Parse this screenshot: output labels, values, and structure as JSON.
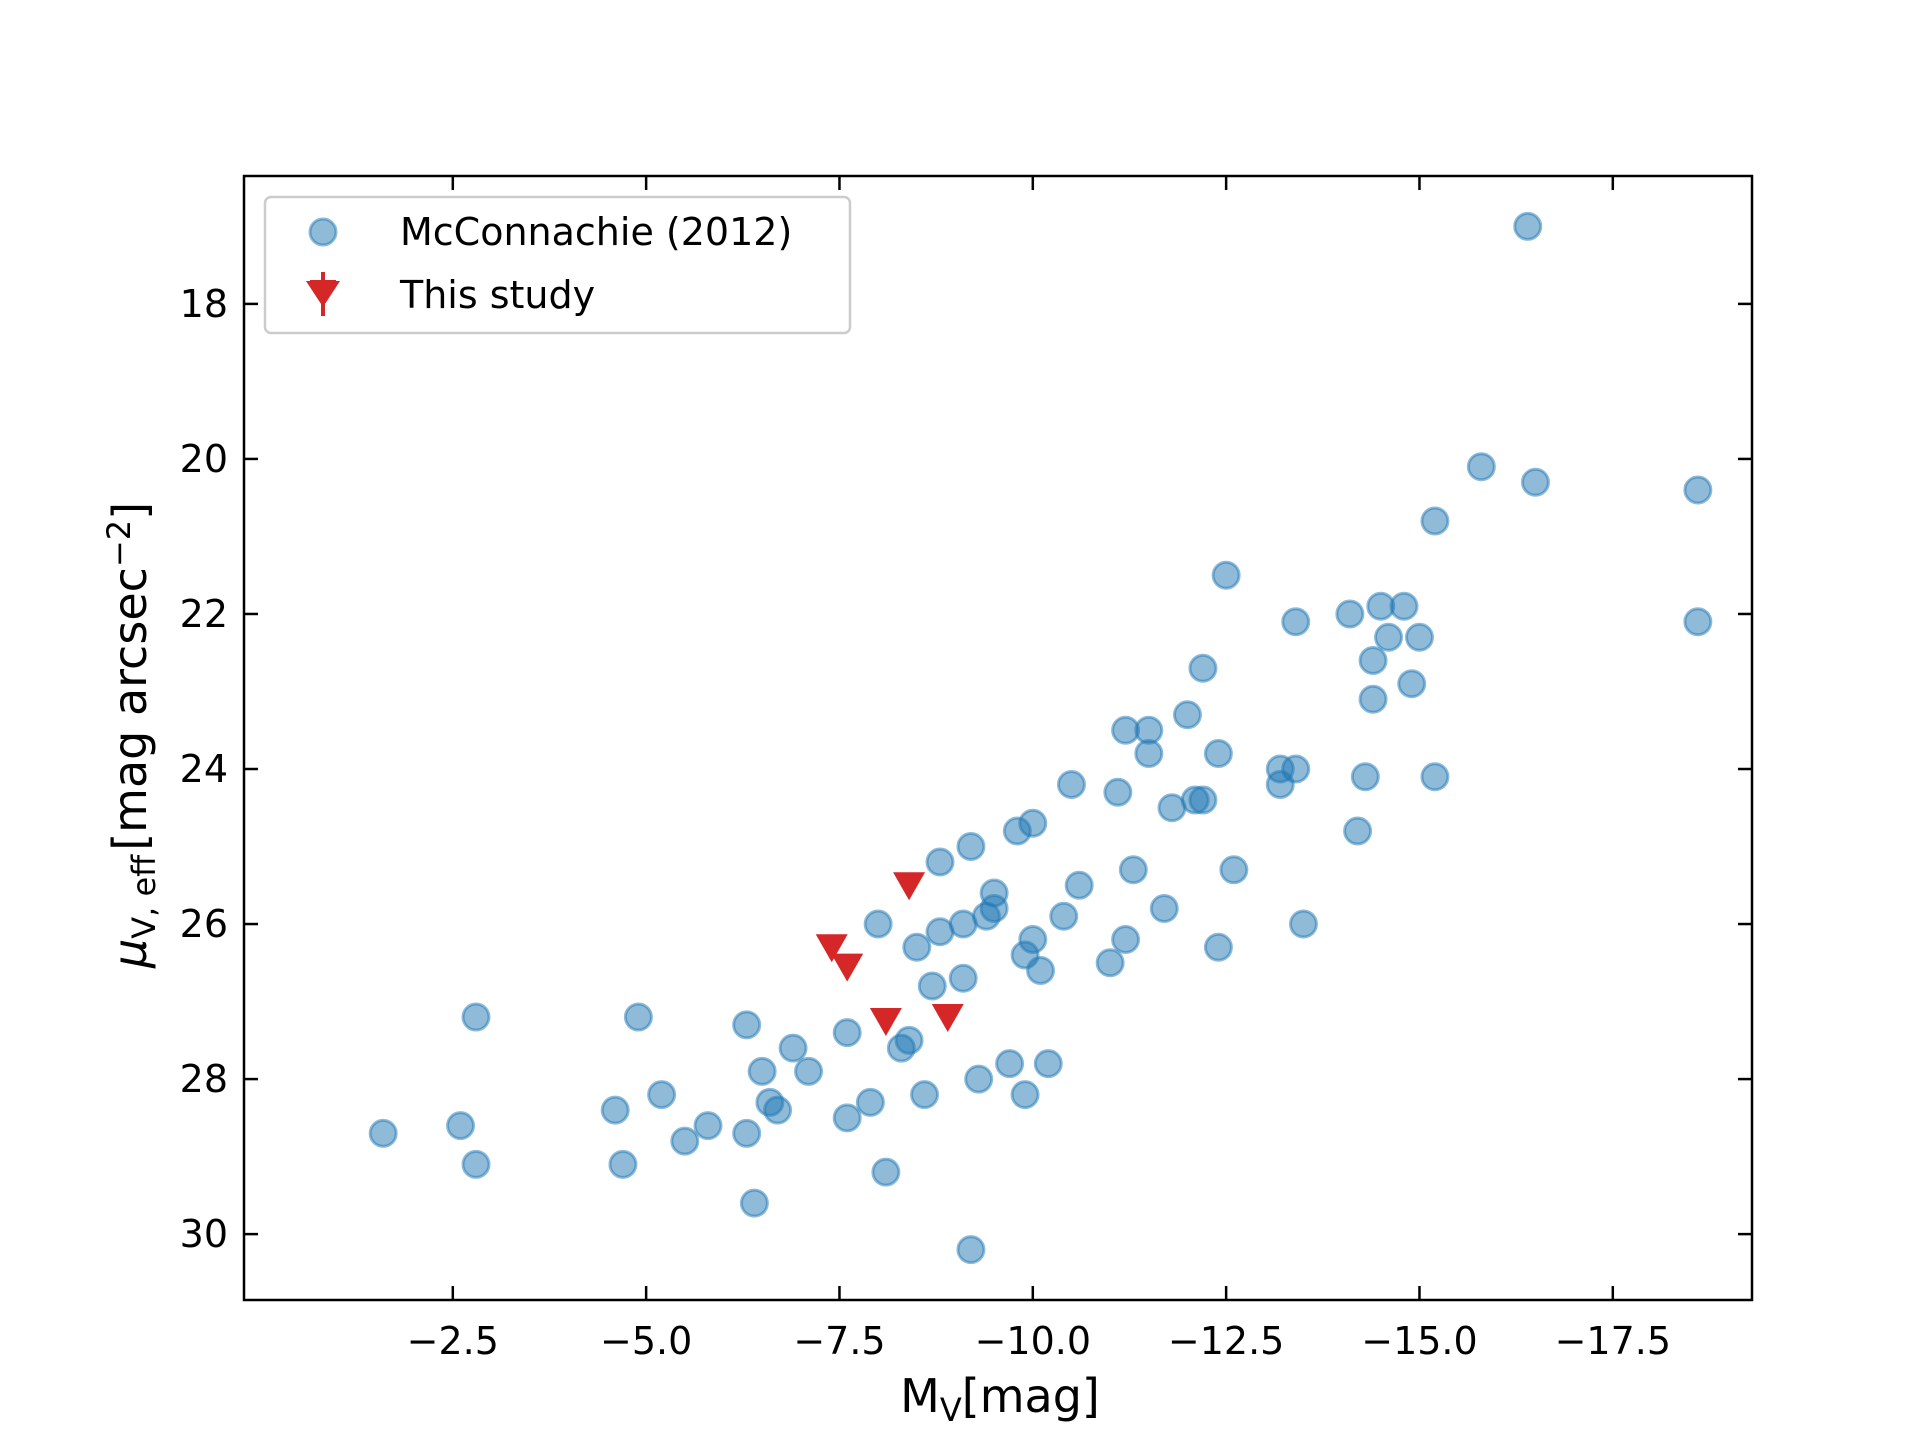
{
  "chart_data": {
    "type": "scatter",
    "title": "",
    "xlabel": {
      "main": "M",
      "sub": "V",
      "rest": "[mag]"
    },
    "ylabel": {
      "main": "μ",
      "sub": "V, eff",
      "rest": "[mag arcsec",
      "sup": "−2",
      "end": "]"
    },
    "xlim": [
      0.2,
      -19.3
    ],
    "ylim": [
      30.85,
      16.35
    ],
    "xticks": [
      {
        "value": -2.5,
        "label": "−2.5"
      },
      {
        "value": -5.0,
        "label": "−5.0"
      },
      {
        "value": -7.5,
        "label": "−7.5"
      },
      {
        "value": -10.0,
        "label": "−10.0"
      },
      {
        "value": -12.5,
        "label": "−12.5"
      },
      {
        "value": -15.0,
        "label": "−15.0"
      },
      {
        "value": -17.5,
        "label": "−17.5"
      }
    ],
    "yticks": [
      {
        "value": 18,
        "label": "18"
      },
      {
        "value": 20,
        "label": "20"
      },
      {
        "value": 22,
        "label": "22"
      },
      {
        "value": 24,
        "label": "24"
      },
      {
        "value": 26,
        "label": "26"
      },
      {
        "value": 28,
        "label": "28"
      },
      {
        "value": 30,
        "label": "30"
      }
    ],
    "legend_position": "top-left",
    "series": [
      {
        "name": "McConnachie (2012)",
        "marker": "circle",
        "color": "#1f77b4",
        "points": [
          [
            -16.4,
            17.0
          ],
          [
            -15.8,
            20.1
          ],
          [
            -16.5,
            20.3
          ],
          [
            -18.6,
            20.4
          ],
          [
            -15.2,
            20.8
          ],
          [
            -18.6,
            22.1
          ],
          [
            -12.5,
            21.5
          ],
          [
            -13.4,
            22.1
          ],
          [
            -14.1,
            22.0
          ],
          [
            -14.5,
            21.9
          ],
          [
            -14.8,
            21.9
          ],
          [
            -14.6,
            22.3
          ],
          [
            -15.0,
            22.3
          ],
          [
            -14.4,
            22.6
          ],
          [
            -14.9,
            22.9
          ],
          [
            -14.4,
            23.1
          ],
          [
            -12.2,
            22.7
          ],
          [
            -12.0,
            23.3
          ],
          [
            -11.2,
            23.5
          ],
          [
            -11.5,
            23.5
          ],
          [
            -11.5,
            23.8
          ],
          [
            -12.4,
            23.8
          ],
          [
            -13.2,
            24.0
          ],
          [
            -13.4,
            24.0
          ],
          [
            -13.2,
            24.2
          ],
          [
            -14.3,
            24.1
          ],
          [
            -15.2,
            24.1
          ],
          [
            -10.5,
            24.2
          ],
          [
            -11.1,
            24.3
          ],
          [
            -12.1,
            24.4
          ],
          [
            -12.2,
            24.4
          ],
          [
            -11.8,
            24.5
          ],
          [
            -10.0,
            24.7
          ],
          [
            -9.8,
            24.8
          ],
          [
            -14.2,
            24.8
          ],
          [
            -9.2,
            25.0
          ],
          [
            -8.8,
            25.2
          ],
          [
            -11.3,
            25.3
          ],
          [
            -12.6,
            25.3
          ],
          [
            -10.6,
            25.5
          ],
          [
            -9.5,
            25.6
          ],
          [
            -9.5,
            25.8
          ],
          [
            -11.7,
            25.8
          ],
          [
            -9.4,
            25.9
          ],
          [
            -10.4,
            25.9
          ],
          [
            -8.0,
            26.0
          ],
          [
            -9.1,
            26.0
          ],
          [
            -13.5,
            26.0
          ],
          [
            -8.8,
            26.1
          ],
          [
            -10.0,
            26.2
          ],
          [
            -11.2,
            26.2
          ],
          [
            -8.5,
            26.3
          ],
          [
            -12.4,
            26.3
          ],
          [
            -9.9,
            26.4
          ],
          [
            -11.0,
            26.5
          ],
          [
            -10.1,
            26.6
          ],
          [
            -9.1,
            26.7
          ],
          [
            -8.7,
            26.8
          ],
          [
            -1.6,
            28.7
          ],
          [
            -2.6,
            28.6
          ],
          [
            -2.8,
            27.2
          ],
          [
            -2.8,
            29.1
          ],
          [
            -4.6,
            28.4
          ],
          [
            -4.7,
            29.1
          ],
          [
            -4.9,
            27.2
          ],
          [
            -5.2,
            28.2
          ],
          [
            -5.5,
            28.8
          ],
          [
            -5.8,
            28.6
          ],
          [
            -6.3,
            27.3
          ],
          [
            -6.3,
            28.7
          ],
          [
            -6.5,
            27.9
          ],
          [
            -6.6,
            28.3
          ],
          [
            -6.7,
            28.4
          ],
          [
            -6.4,
            29.6
          ],
          [
            -6.9,
            27.6
          ],
          [
            -7.1,
            27.9
          ],
          [
            -7.6,
            27.4
          ],
          [
            -7.6,
            28.5
          ],
          [
            -7.9,
            28.3
          ],
          [
            -8.1,
            29.2
          ],
          [
            -8.3,
            27.6
          ],
          [
            -8.4,
            27.5
          ],
          [
            -8.6,
            28.2
          ],
          [
            -9.3,
            28.0
          ],
          [
            -9.7,
            27.8
          ],
          [
            -9.9,
            28.2
          ],
          [
            -10.2,
            27.8
          ],
          [
            -9.2,
            30.2
          ]
        ]
      },
      {
        "name": "This study",
        "marker": "triangle-down",
        "color": "#d62728",
        "points": [
          [
            -7.4,
            26.3
          ],
          [
            -7.6,
            26.55
          ],
          [
            -8.1,
            27.25
          ],
          [
            -8.9,
            27.2
          ],
          [
            -8.4,
            25.5
          ]
        ]
      }
    ]
  }
}
